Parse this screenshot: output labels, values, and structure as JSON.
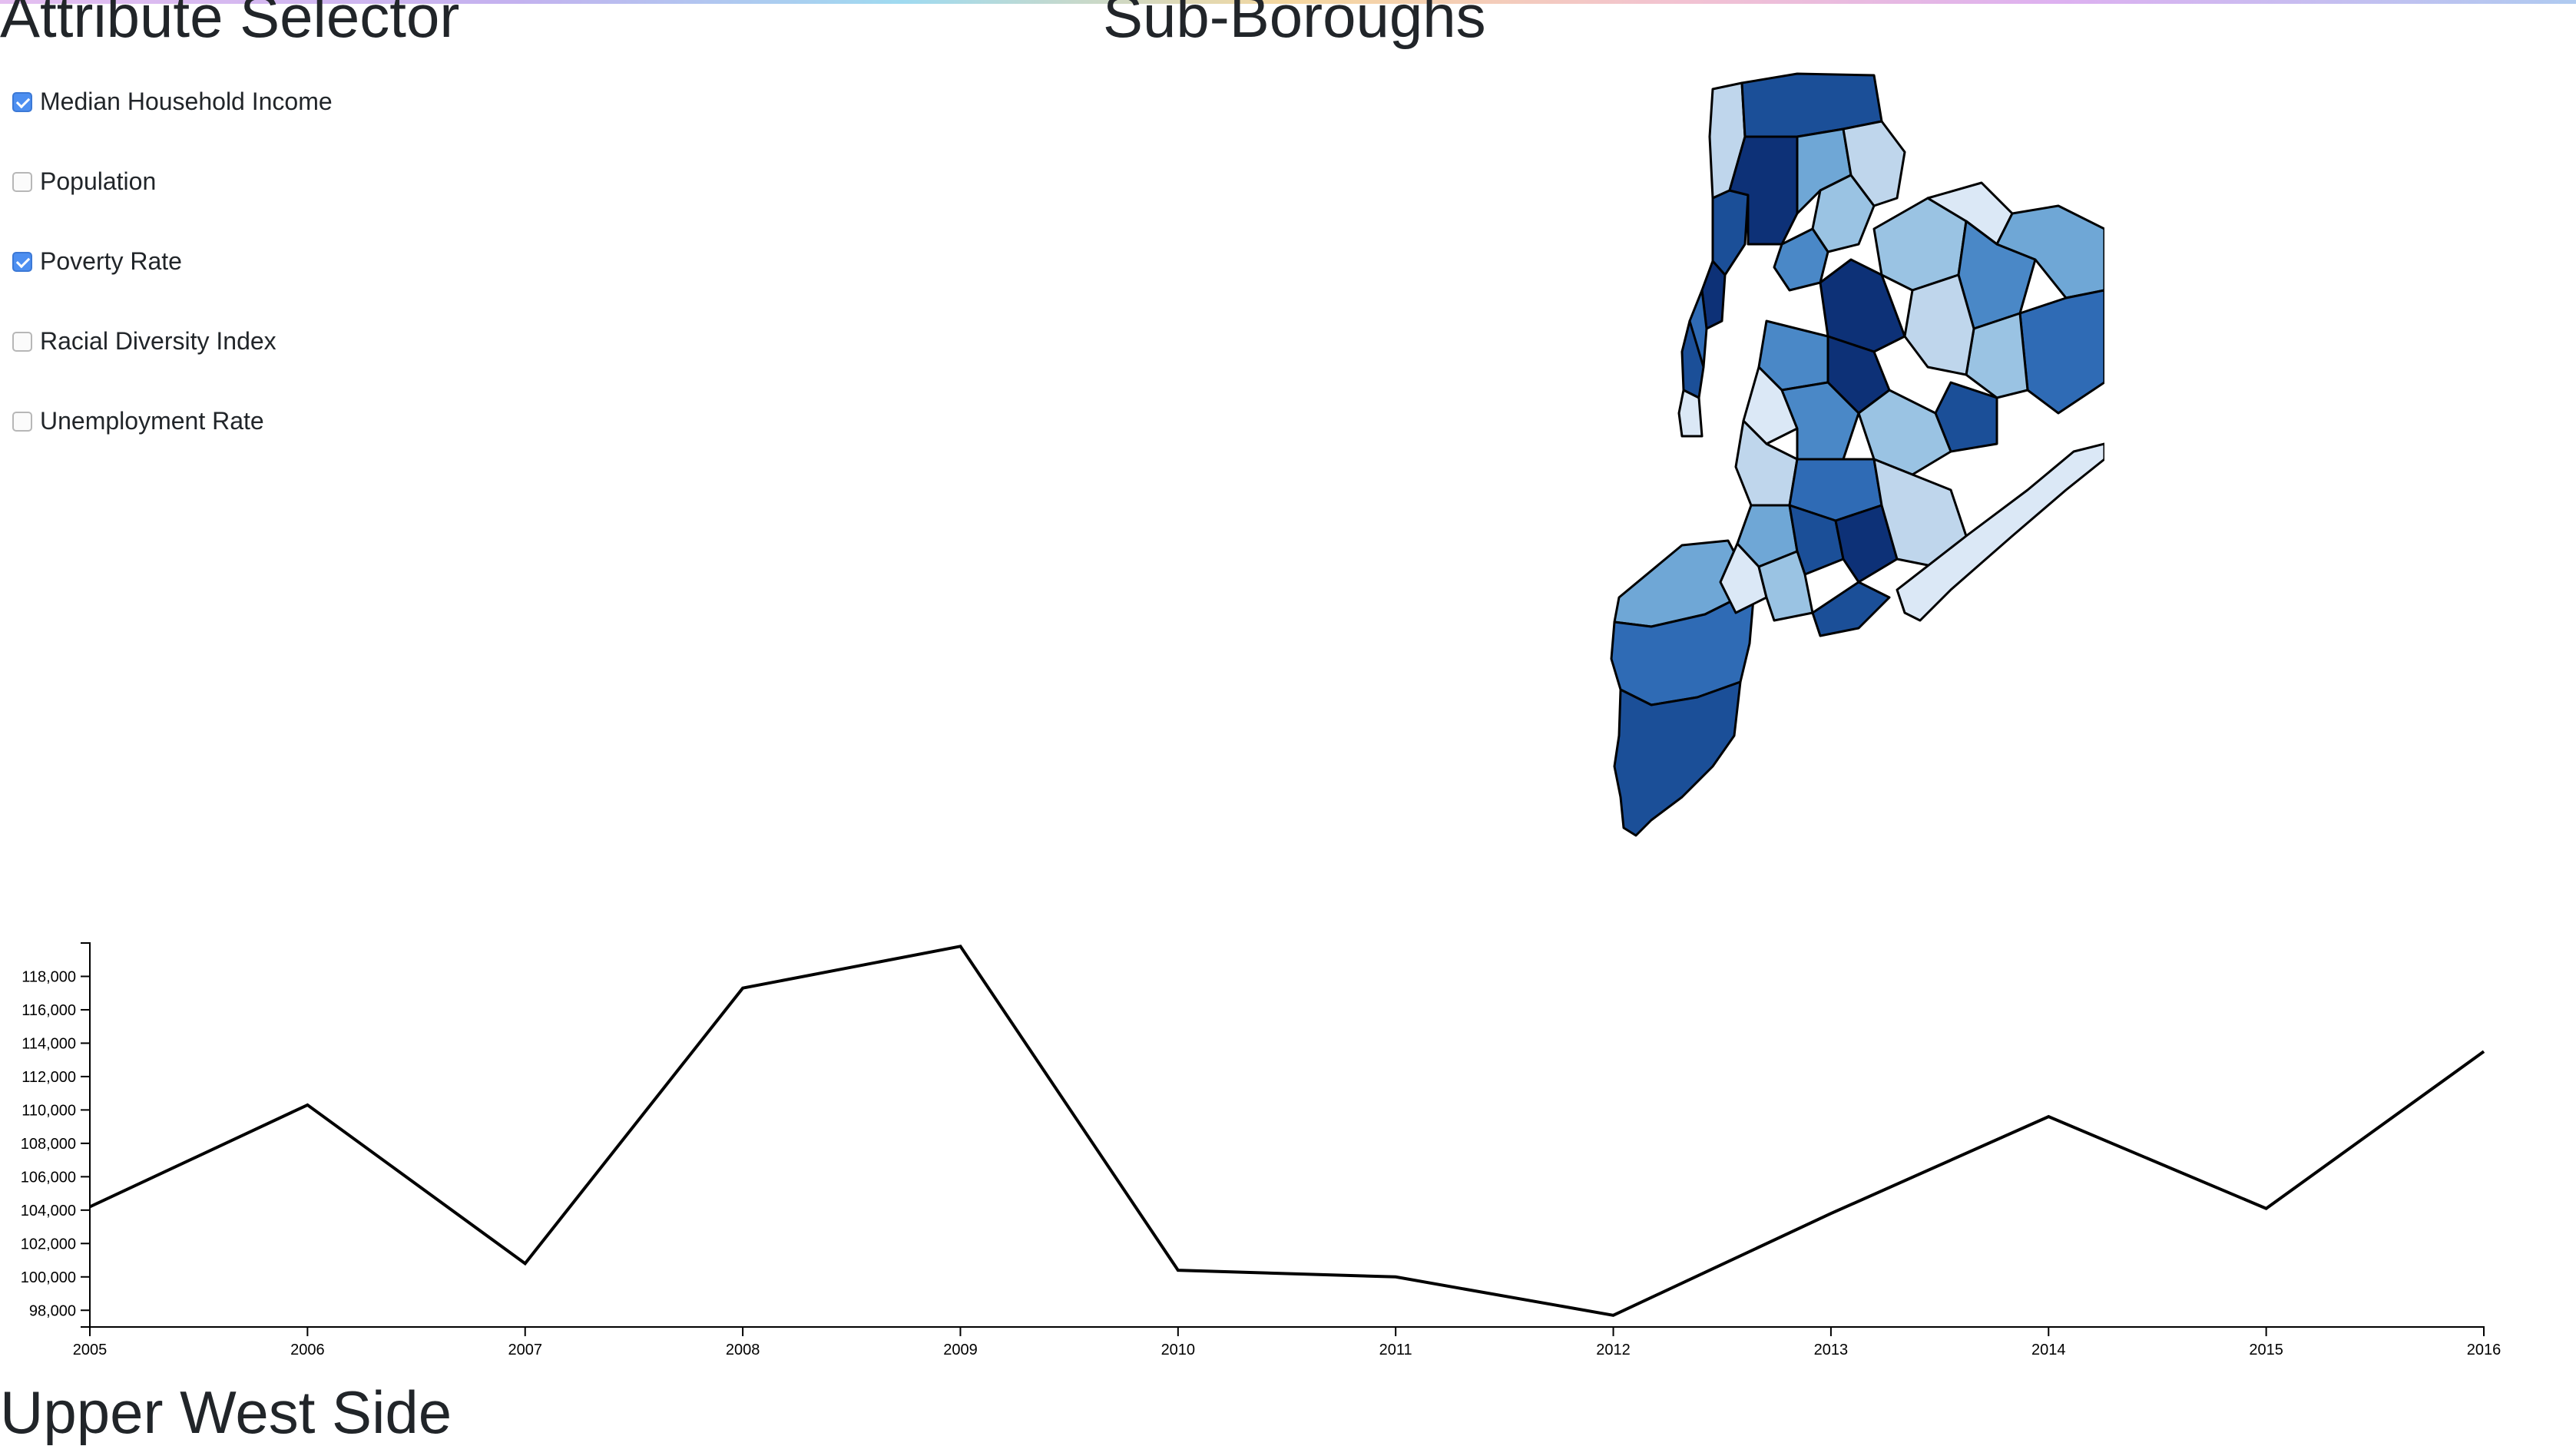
{
  "headings": {
    "attribute_selector": "Attribute Selector",
    "map_title": "Sub-Boroughs",
    "selected_area": "Upper West Side"
  },
  "attributes": [
    {
      "label": "Median Household Income",
      "checked": true
    },
    {
      "label": "Population",
      "checked": false
    },
    {
      "label": "Poverty Rate",
      "checked": true
    },
    {
      "label": "Racial Diversity Index",
      "checked": false
    },
    {
      "label": "Unemployment Rate",
      "checked": false
    }
  ],
  "colors": {
    "checkbox_checked": "#4d8ff1",
    "map_scale": [
      "#dbe8f6",
      "#bfd6ec",
      "#9ac3e3",
      "#6fa7d6",
      "#4a88c7",
      "#2f6bb5",
      "#1b4f98",
      "#0d3177"
    ],
    "line": "#000000"
  },
  "chart_data": {
    "type": "line",
    "x": [
      "2005",
      "2006",
      "2007",
      "2008",
      "2009",
      "2010",
      "2011",
      "2012",
      "2013",
      "2014",
      "2015",
      "2016"
    ],
    "values": [
      104200,
      110300,
      100800,
      117300,
      119800,
      100400,
      100000,
      97700,
      103800,
      109600,
      104100,
      113500
    ],
    "ylim": [
      97000,
      120000
    ],
    "y_ticks": [
      98000,
      100000,
      102000,
      104000,
      106000,
      108000,
      110000,
      112000,
      114000,
      116000,
      118000
    ],
    "y_tick_labels": [
      "98,000",
      "100,000",
      "102,000",
      "104,000",
      "106,000",
      "108,000",
      "110,000",
      "112,000",
      "114,000",
      "116,000",
      "118,000"
    ],
    "grid": false,
    "title": "",
    "xlabel": "",
    "ylabel": ""
  }
}
